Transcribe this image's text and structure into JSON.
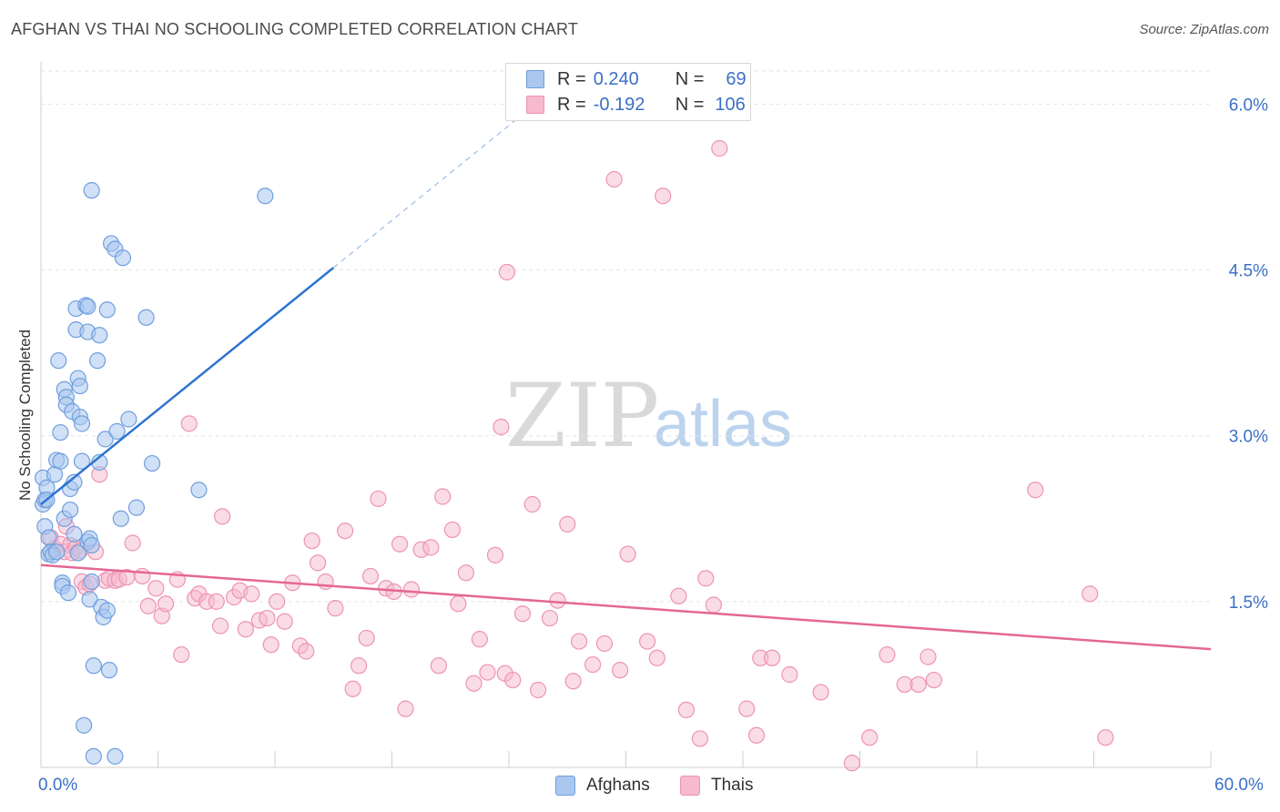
{
  "header": {
    "title": "AFGHAN VS THAI NO SCHOOLING COMPLETED CORRELATION CHART",
    "source": "Source: ZipAtlas.com"
  },
  "watermark": {
    "zip": "ZIP",
    "atlas": "atlas"
  },
  "legend_top": [
    {
      "r_label": "R =",
      "r_value": "0.240",
      "n_label": "N =",
      "n_value": "69"
    },
    {
      "r_label": "R =",
      "r_value": "-0.192",
      "n_label": "N =",
      "n_value": "106"
    }
  ],
  "legend_bottom": [
    {
      "label": "Afghans"
    },
    {
      "label": "Thais"
    }
  ],
  "colors": {
    "afghan_fill": "#a9c7ef",
    "afghan_stroke": "#6f9fde",
    "afghan_line": "#2f74d0",
    "thai_fill": "#f6b9cd",
    "thai_stroke": "#ee93b1",
    "thai_line": "#e36795",
    "grid": "#e3e3e3",
    "axis_label": "#3b6fc7"
  },
  "chart_data": {
    "type": "scatter",
    "title": "AFGHAN VS THAI NO SCHOOLING COMPLETED CORRELATION CHART",
    "xlabel": "",
    "ylabel": "No Schooling Completed",
    "xlim": [
      0,
      60
    ],
    "ylim": [
      0,
      6.3
    ],
    "x_tick_labels": [
      "0.0%",
      "60.0%"
    ],
    "y_ticks": [
      1.5,
      3.0,
      4.5,
      6.0
    ],
    "y_tick_labels": [
      "1.5%",
      "3.0%",
      "4.5%",
      "6.0%"
    ],
    "grid": "horizontal dashed",
    "series": [
      {
        "name": "Afghans",
        "r": 0.24,
        "n": 69,
        "trend": {
          "x1": 0.0,
          "y1": 2.38,
          "x2": 15.0,
          "y2": 4.52,
          "dash_to_x": 25.0,
          "dash_to_y": 5.95
        },
        "points": [
          [
            0.1,
            2.62
          ],
          [
            0.1,
            2.38
          ],
          [
            0.2,
            2.42
          ],
          [
            0.2,
            2.18
          ],
          [
            0.3,
            2.53
          ],
          [
            0.3,
            2.42
          ],
          [
            0.4,
            2.08
          ],
          [
            0.4,
            1.93
          ],
          [
            0.5,
            1.95
          ],
          [
            0.6,
            1.92
          ],
          [
            0.8,
            1.95
          ],
          [
            0.7,
            2.65
          ],
          [
            0.8,
            2.78
          ],
          [
            0.9,
            3.68
          ],
          [
            1.0,
            3.03
          ],
          [
            1.0,
            2.77
          ],
          [
            1.1,
            1.67
          ],
          [
            1.1,
            1.64
          ],
          [
            1.2,
            3.42
          ],
          [
            1.2,
            2.25
          ],
          [
            1.3,
            3.35
          ],
          [
            1.3,
            3.28
          ],
          [
            1.4,
            1.58
          ],
          [
            1.5,
            2.52
          ],
          [
            1.5,
            2.33
          ],
          [
            1.6,
            3.22
          ],
          [
            1.7,
            2.58
          ],
          [
            1.7,
            2.11
          ],
          [
            1.8,
            3.96
          ],
          [
            1.8,
            4.15
          ],
          [
            1.9,
            1.94
          ],
          [
            1.9,
            3.52
          ],
          [
            2.0,
            3.45
          ],
          [
            2.0,
            3.17
          ],
          [
            2.1,
            3.11
          ],
          [
            2.1,
            2.77
          ],
          [
            2.2,
            0.38
          ],
          [
            2.3,
            4.18
          ],
          [
            2.4,
            4.17
          ],
          [
            2.4,
            3.94
          ],
          [
            2.4,
            2.04
          ],
          [
            2.5,
            2.07
          ],
          [
            2.5,
            1.52
          ],
          [
            2.6,
            1.68
          ],
          [
            2.6,
            2.01
          ],
          [
            2.7,
            0.92
          ],
          [
            2.7,
            0.1
          ],
          [
            2.6,
            5.22
          ],
          [
            2.9,
            3.68
          ],
          [
            3.0,
            3.91
          ],
          [
            3.0,
            2.76
          ],
          [
            3.1,
            1.45
          ],
          [
            3.2,
            1.36
          ],
          [
            3.3,
            2.97
          ],
          [
            3.4,
            1.42
          ],
          [
            3.4,
            4.14
          ],
          [
            3.5,
            0.88
          ],
          [
            3.6,
            4.74
          ],
          [
            3.8,
            4.69
          ],
          [
            3.9,
            3.04
          ],
          [
            3.8,
            0.1
          ],
          [
            4.1,
            2.25
          ],
          [
            4.2,
            4.61
          ],
          [
            4.5,
            3.15
          ],
          [
            4.9,
            2.35
          ],
          [
            5.4,
            4.07
          ],
          [
            5.7,
            2.75
          ],
          [
            8.1,
            2.51
          ],
          [
            11.5,
            5.17
          ]
        ]
      },
      {
        "name": "Thais",
        "r": -0.192,
        "n": 106,
        "trend": {
          "x1": 0.0,
          "y1": 1.83,
          "x2": 60.0,
          "y2": 1.07
        },
        "points": [
          [
            0.5,
            2.08
          ],
          [
            0.7,
            1.98
          ],
          [
            1.0,
            2.02
          ],
          [
            1.2,
            1.95
          ],
          [
            1.3,
            2.18
          ],
          [
            1.5,
            2.01
          ],
          [
            1.6,
            1.94
          ],
          [
            1.8,
            1.99
          ],
          [
            2.0,
            1.96
          ],
          [
            2.1,
            1.68
          ],
          [
            2.3,
            1.63
          ],
          [
            2.5,
            1.66
          ],
          [
            2.8,
            1.95
          ],
          [
            3.0,
            2.65
          ],
          [
            3.3,
            1.69
          ],
          [
            3.5,
            1.71
          ],
          [
            3.8,
            1.69
          ],
          [
            4.0,
            1.7
          ],
          [
            4.4,
            1.72
          ],
          [
            4.7,
            2.03
          ],
          [
            5.2,
            1.73
          ],
          [
            5.5,
            1.46
          ],
          [
            5.9,
            1.62
          ],
          [
            6.2,
            1.37
          ],
          [
            6.4,
            1.48
          ],
          [
            7.0,
            1.7
          ],
          [
            7.2,
            1.02
          ],
          [
            7.6,
            3.11
          ],
          [
            7.9,
            1.53
          ],
          [
            8.1,
            1.57
          ],
          [
            8.5,
            1.5
          ],
          [
            9.0,
            1.5
          ],
          [
            9.2,
            1.28
          ],
          [
            9.3,
            2.27
          ],
          [
            9.9,
            1.54
          ],
          [
            10.2,
            1.6
          ],
          [
            10.5,
            1.25
          ],
          [
            10.8,
            1.57
          ],
          [
            11.2,
            1.33
          ],
          [
            11.6,
            1.35
          ],
          [
            11.8,
            1.11
          ],
          [
            12.1,
            1.5
          ],
          [
            12.5,
            1.32
          ],
          [
            12.9,
            1.67
          ],
          [
            13.3,
            1.1
          ],
          [
            13.6,
            1.05
          ],
          [
            13.9,
            2.05
          ],
          [
            14.2,
            1.85
          ],
          [
            14.6,
            1.68
          ],
          [
            15.1,
            1.44
          ],
          [
            15.6,
            2.14
          ],
          [
            16.0,
            0.71
          ],
          [
            16.3,
            0.92
          ],
          [
            16.7,
            1.17
          ],
          [
            16.9,
            1.73
          ],
          [
            17.3,
            2.43
          ],
          [
            17.7,
            1.62
          ],
          [
            18.1,
            1.59
          ],
          [
            18.4,
            2.02
          ],
          [
            18.7,
            0.53
          ],
          [
            19.0,
            1.61
          ],
          [
            19.5,
            1.97
          ],
          [
            20.0,
            1.99
          ],
          [
            20.4,
            0.92
          ],
          [
            20.6,
            2.45
          ],
          [
            21.1,
            2.15
          ],
          [
            21.4,
            1.48
          ],
          [
            21.8,
            1.76
          ],
          [
            22.2,
            0.76
          ],
          [
            22.5,
            1.16
          ],
          [
            22.9,
            0.86
          ],
          [
            23.3,
            1.92
          ],
          [
            23.6,
            3.08
          ],
          [
            23.8,
            0.85
          ],
          [
            24.2,
            0.79
          ],
          [
            24.7,
            1.39
          ],
          [
            25.2,
            2.38
          ],
          [
            25.5,
            0.7
          ],
          [
            26.1,
            1.35
          ],
          [
            26.5,
            1.51
          ],
          [
            27.0,
            2.2
          ],
          [
            27.3,
            0.78
          ],
          [
            27.6,
            1.14
          ],
          [
            28.3,
            0.93
          ],
          [
            28.9,
            1.12
          ],
          [
            29.4,
            5.32
          ],
          [
            29.7,
            0.88
          ],
          [
            30.1,
            1.93
          ],
          [
            31.1,
            1.14
          ],
          [
            31.6,
            0.99
          ],
          [
            31.9,
            5.17
          ],
          [
            32.7,
            1.55
          ],
          [
            33.1,
            0.52
          ],
          [
            33.8,
            0.26
          ],
          [
            34.1,
            1.71
          ],
          [
            34.5,
            1.47
          ],
          [
            36.2,
            0.53
          ],
          [
            36.7,
            0.29
          ],
          [
            36.9,
            0.99
          ],
          [
            37.5,
            0.99
          ],
          [
            38.4,
            0.84
          ],
          [
            40.0,
            0.68
          ],
          [
            41.6,
            0.04
          ],
          [
            42.5,
            0.27
          ],
          [
            43.4,
            1.02
          ],
          [
            44.3,
            0.75
          ]
        ],
        "extra_points": [
          [
            45.0,
            0.75
          ],
          [
            45.5,
            1.0
          ],
          [
            45.8,
            0.79
          ],
          [
            51.0,
            2.51
          ],
          [
            53.8,
            1.57
          ],
          [
            54.6,
            0.27
          ],
          [
            34.8,
            5.6
          ],
          [
            23.9,
            4.48
          ]
        ]
      }
    ]
  }
}
